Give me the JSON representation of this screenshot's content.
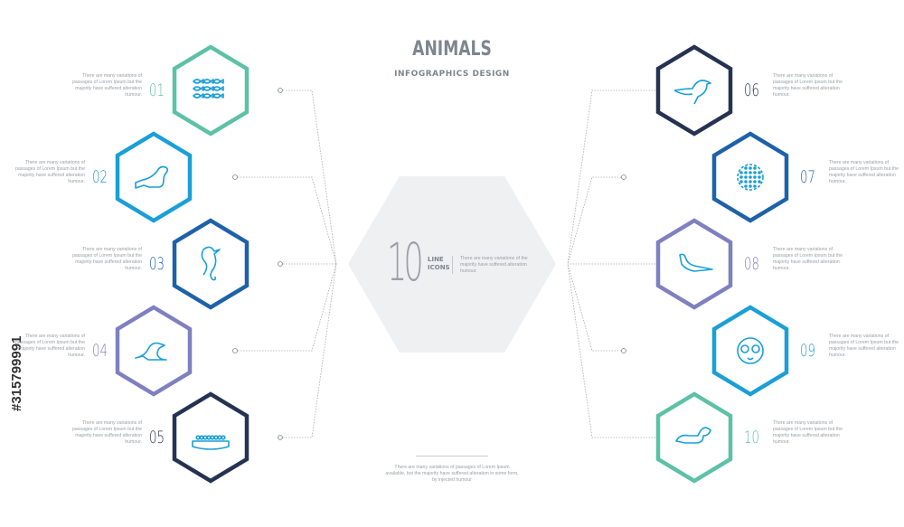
{
  "header": {
    "title": "ANIMALS",
    "subtitle": "INFOGRAPHICS DESIGN"
  },
  "center": {
    "number": "10",
    "label_line1": "LINE",
    "label_line2": "ICONS",
    "description": "There are many variations of the majority have suffered alteration humour."
  },
  "footer": {
    "description": "There are many variations of passages of Lorem Ipsum available, but the majority have suffered alteration in some form, by injected humour"
  },
  "stock_id": "#315799991",
  "colors": {
    "teal": "#5cc1a6",
    "blue": "#1a9fd6",
    "darkblue": "#1d62a9",
    "purple": "#7f80c0",
    "navy": "#253352",
    "icon": "#1a9fd6",
    "center_hex": "#eef0f2"
  },
  "items": [
    {
      "number": "01",
      "icon": "fish-school-icon",
      "color": "#5cc1a6",
      "side": "left",
      "description": "There are many variations of passages of Lorem Ipsum but the majority have suffered alteration humour."
    },
    {
      "number": "02",
      "icon": "seal-icon",
      "color": "#1a9fd6",
      "side": "left",
      "description": "There are many variations of passages of Lorem Ipsum but the majority have suffered alteration humour."
    },
    {
      "number": "03",
      "icon": "seahorse-icon",
      "color": "#1d62a9",
      "side": "left",
      "description": "There are many variations of passages of Lorem Ipsum but the majority have suffered alteration humour."
    },
    {
      "number": "04",
      "icon": "sea-lion-icon",
      "color": "#7f80c0",
      "side": "left",
      "description": "There are many variations of passages of Lorem Ipsum but the majority have suffered alteration humour."
    },
    {
      "number": "05",
      "icon": "caviar-icon",
      "color": "#253352",
      "side": "left",
      "description": "There are many variations of passages of Lorem Ipsum but the majority have suffered alteration humour."
    },
    {
      "number": "06",
      "icon": "bird-icon",
      "color": "#253352",
      "side": "right",
      "description": "There are many variations of passages of Lorem Ipsum but the majority have suffered alteration humour."
    },
    {
      "number": "07",
      "icon": "pufferfish-icon",
      "color": "#1d62a9",
      "side": "right",
      "description": "There are many variations of passages of Lorem Ipsum but the majority have suffered alteration humour."
    },
    {
      "number": "08",
      "icon": "otter-icon",
      "color": "#7f80c0",
      "side": "right",
      "description": "There are many variations of passages of Lorem Ipsum but the majority have suffered alteration humour."
    },
    {
      "number": "09",
      "icon": "lemur-icon",
      "color": "#1a9fd6",
      "side": "right",
      "description": "There are many variations of passages of Lorem Ipsum but the majority have suffered alteration humour."
    },
    {
      "number": "10",
      "icon": "skunk-icon",
      "color": "#5cc1a6",
      "side": "right",
      "description": "There are many variations of passages of Lorem Ipsum but the majority have suffered alteration humour."
    }
  ]
}
